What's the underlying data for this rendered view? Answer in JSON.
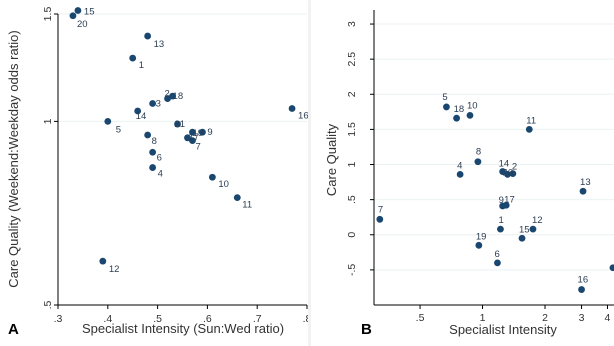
{
  "chart_data": [
    {
      "panel": "A",
      "type": "scatter",
      "xlabel": "Specialist Intensity (Sun:Wed ratio)",
      "ylabel": "Care Quality (Weekend:Weekday odds ratio)",
      "x_scale": "linear",
      "y_scale": "log",
      "xlim": [
        0.3,
        0.8
      ],
      "ylim": [
        0.5,
        1.5
      ],
      "x_ticks": [
        ".3",
        ".4",
        ".5",
        ".6",
        ".7",
        ".8"
      ],
      "x_tick_values": [
        0.3,
        0.4,
        0.5,
        0.6,
        0.7,
        0.8
      ],
      "y_ticks": [
        ".5",
        "1",
        "1.5"
      ],
      "y_tick_values": [
        0.5,
        1.0,
        1.5
      ],
      "grid": true,
      "marker_color": "#1a476f",
      "points": [
        {
          "label": "1",
          "x": 0.45,
          "y": 1.27
        },
        {
          "label": "2",
          "x": 0.52,
          "y": 1.09
        },
        {
          "label": "3",
          "x": 0.49,
          "y": 1.07
        },
        {
          "label": "4",
          "x": 0.49,
          "y": 0.84
        },
        {
          "label": "5",
          "x": 0.4,
          "y": 1.0
        },
        {
          "label": "6",
          "x": 0.49,
          "y": 0.89
        },
        {
          "label": "7",
          "x": 0.57,
          "y": 0.93
        },
        {
          "label": "8",
          "x": 0.48,
          "y": 0.95
        },
        {
          "label": "9",
          "x": 0.59,
          "y": 0.96
        },
        {
          "label": "10",
          "x": 0.61,
          "y": 0.81
        },
        {
          "label": "11",
          "x": 0.66,
          "y": 0.75
        },
        {
          "label": "12",
          "x": 0.39,
          "y": 0.59
        },
        {
          "label": "13",
          "x": 0.48,
          "y": 1.38
        },
        {
          "label": "14",
          "x": 0.46,
          "y": 1.04
        },
        {
          "label": "15",
          "x": 0.34,
          "y": 1.52
        },
        {
          "label": "16",
          "x": 0.77,
          "y": 1.05
        },
        {
          "label": "17",
          "x": 0.56,
          "y": 0.94
        },
        {
          "label": "18",
          "x": 0.53,
          "y": 1.1
        },
        {
          "label": "19",
          "x": 0.57,
          "y": 0.96
        },
        {
          "label": "20",
          "x": 0.33,
          "y": 1.49
        },
        {
          "label": "21",
          "x": 0.54,
          "y": 0.99
        }
      ]
    },
    {
      "panel": "B",
      "type": "scatter",
      "xlabel": "Specialist Intensity",
      "ylabel": "Care Quality",
      "x_scale": "log",
      "y_scale": "linear",
      "xlim": [
        0.3,
        4.3
      ],
      "ylim": [
        -1.0,
        3.2
      ],
      "x_ticks": [
        ".5",
        "1",
        "2",
        "3",
        "4"
      ],
      "x_tick_values": [
        0.5,
        1,
        2,
        3,
        4
      ],
      "y_ticks": [
        "-.5",
        "0",
        ".5",
        "1",
        "1.5",
        "2",
        "2.5",
        "3"
      ],
      "y_tick_values": [
        -0.5,
        0,
        0.5,
        1,
        1.5,
        2,
        2.5,
        3
      ],
      "grid": true,
      "marker_color": "#1a476f",
      "points": [
        {
          "label": "1",
          "x": 1.22,
          "y": 0.08
        },
        {
          "label": "2",
          "x": 1.4,
          "y": 0.87
        },
        {
          "label": "3",
          "x": 4.25,
          "y": -0.47
        },
        {
          "label": "4",
          "x": 0.78,
          "y": 0.86
        },
        {
          "label": "5",
          "x": 0.67,
          "y": 1.82
        },
        {
          "label": "6",
          "x": 1.18,
          "y": -0.4
        },
        {
          "label": "7",
          "x": 0.32,
          "y": 0.22
        },
        {
          "label": "8",
          "x": 0.95,
          "y": 1.04
        },
        {
          "label": "9",
          "x": 1.25,
          "y": 0.41
        },
        {
          "label": "10",
          "x": 0.87,
          "y": 1.7
        },
        {
          "label": "11",
          "x": 1.68,
          "y": 1.5
        },
        {
          "label": "12",
          "x": 1.75,
          "y": 0.08
        },
        {
          "label": "13",
          "x": 3.05,
          "y": 0.62
        },
        {
          "label": "14",
          "x": 1.25,
          "y": 0.9
        },
        {
          "label": "15",
          "x": 1.55,
          "y": -0.05
        },
        {
          "label": "16",
          "x": 3.0,
          "y": -0.78
        },
        {
          "label": "17",
          "x": 1.3,
          "y": 0.42
        },
        {
          "label": "18",
          "x": 0.75,
          "y": 1.66
        },
        {
          "label": "19",
          "x": 0.96,
          "y": -0.15
        },
        {
          "label": "20",
          "x": 1.32,
          "y": 0.86
        }
      ]
    }
  ]
}
